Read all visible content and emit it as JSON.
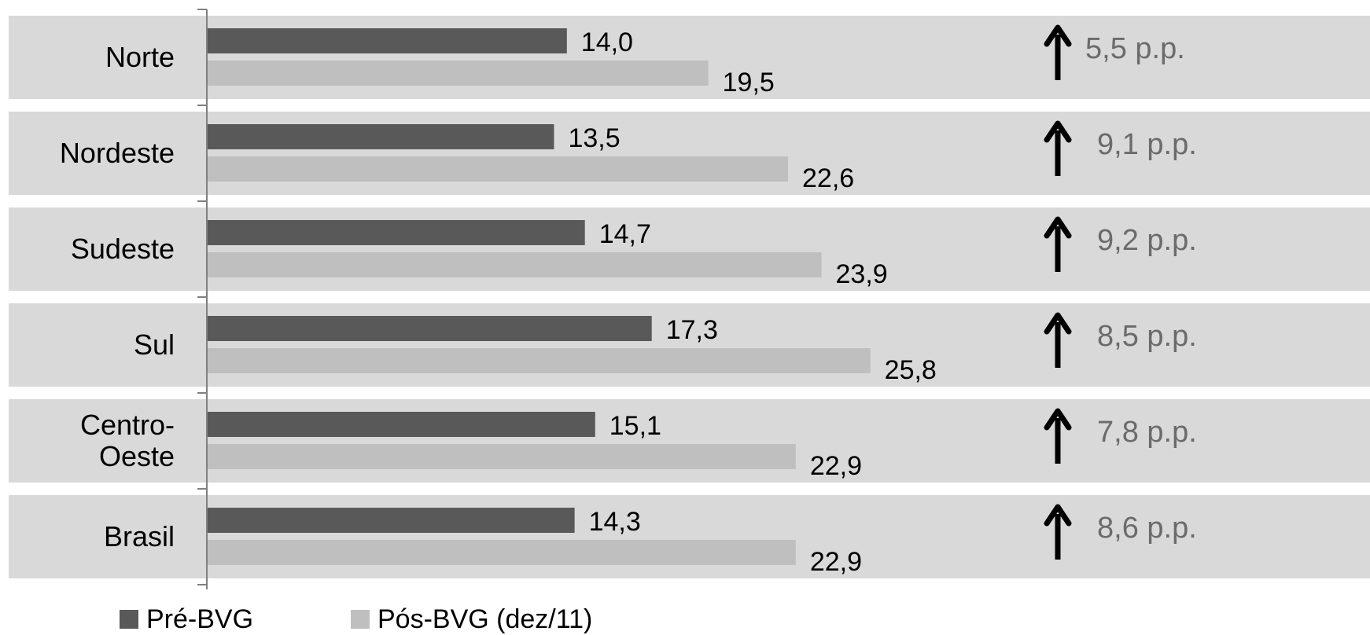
{
  "chart_data": {
    "type": "bar",
    "orientation": "horizontal",
    "categories": [
      "Norte",
      "Nordeste",
      "Sudeste",
      "Sul",
      "Centro-Oeste",
      "Brasil"
    ],
    "category_lines": [
      [
        "Norte"
      ],
      [
        "Nordeste"
      ],
      [
        "Sudeste"
      ],
      [
        "Sul"
      ],
      [
        "Centro-",
        "Oeste"
      ],
      [
        "Brasil"
      ]
    ],
    "series": [
      {
        "name": "Pré-BVG",
        "values": [
          14.0,
          13.5,
          14.7,
          17.3,
          15.1,
          14.3
        ],
        "labels": [
          "14,0",
          "13,5",
          "14,7",
          "17,3",
          "15,1",
          "14,3"
        ],
        "color": "#595959"
      },
      {
        "name": "Pós-BVG (dez/11)",
        "values": [
          19.5,
          22.6,
          23.9,
          25.8,
          22.9,
          22.9
        ],
        "labels": [
          "19,5",
          "22,6",
          "23,9",
          "25,8",
          "22,9",
          "22,9"
        ],
        "color": "#bfbfbf"
      }
    ],
    "differences": [
      "5,5 p.p.",
      "9,1 p.p.",
      "9,2 p.p.",
      "8,5 p.p.",
      "7,8 p.p.",
      "8,6 p.p."
    ],
    "difference_icon": "arrow-up-icon",
    "xlim": [
      0,
      50
    ],
    "grid": false,
    "legend_position": "bottom-left",
    "title": "",
    "xlabel": "",
    "ylabel": ""
  },
  "colors": {
    "row_band": "#d9d9d9",
    "axis": "#808080",
    "diff_text": "#6b6b6b",
    "text": "#000000"
  },
  "legend": {
    "pre_label": "Pré-BVG",
    "pos_label": "Pós-BVG (dez/11)"
  }
}
